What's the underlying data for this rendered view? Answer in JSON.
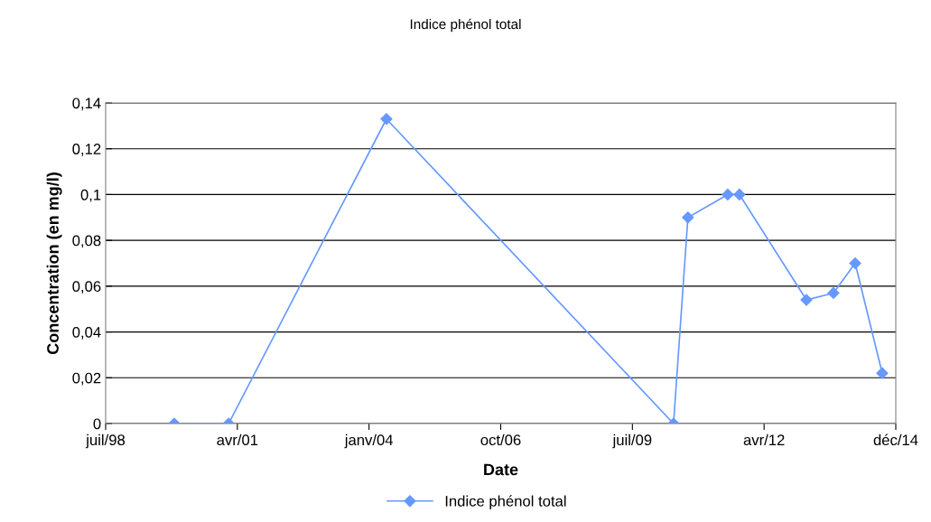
{
  "chart_data": {
    "type": "line",
    "title": "Indice phénol total",
    "xlabel": "Date",
    "ylabel": "Concentration (en mg/l)",
    "series": [
      {
        "name": "Indice phénol total",
        "color": "#6699ff",
        "x": [
          "2000-01-02",
          "2001-02-18",
          "2004-05-30",
          "2010-05-17",
          "2010-09-03",
          "2011-07-02",
          "2011-09-29",
          "2013-02-18",
          "2013-09-11",
          "2014-02-23",
          "2014-09-16"
        ],
        "values": [
          0,
          0,
          0.133,
          0,
          0.09,
          0.1,
          0.1,
          0.054,
          0.057,
          0.07,
          0.022
        ]
      }
    ],
    "xlim": [
      "1998-07-31",
      "2014-12-28"
    ],
    "xticks": [
      {
        "value": "1998-07-31",
        "label": "juil/98"
      },
      {
        "value": "2001-04-25",
        "label": "avr/01"
      },
      {
        "value": "2004-01-19",
        "label": "janv/04"
      },
      {
        "value": "2006-10-14",
        "label": "oct/06"
      },
      {
        "value": "2009-07-09",
        "label": "juil/09"
      },
      {
        "value": "2012-04-03",
        "label": "avr/12"
      },
      {
        "value": "2014-12-28",
        "label": "déc/14"
      }
    ],
    "ylim": [
      0,
      0.14
    ],
    "yticks": [
      0,
      {
        "value": 0.02,
        "label": "0,02"
      },
      {
        "value": 0.04,
        "label": "0,04"
      },
      {
        "value": 0.06,
        "label": "0,06"
      },
      {
        "value": 0.08,
        "label": "0,08"
      },
      {
        "value": 0.1,
        "label": "0,1"
      },
      {
        "value": 0.12,
        "label": "0,12"
      },
      {
        "value": 0.14,
        "label": "0,14"
      }
    ],
    "grid": "y",
    "legend": "bottom",
    "marker": "diamond",
    "line_style": "solid"
  }
}
